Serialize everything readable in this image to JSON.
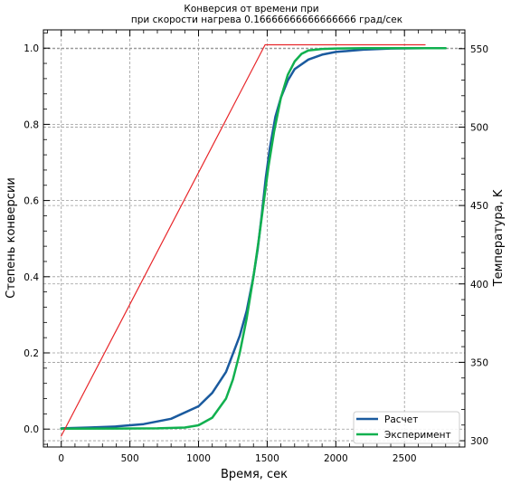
{
  "chart_data": {
    "type": "line",
    "title_line1": "Конверсия от времени при",
    "title_line2": "при скорости нагрева 0.16666666666666666 град/сек",
    "xlabel": "Время, сек",
    "ylabel": "Степень конверсии",
    "ylabel_right": "Температура, K",
    "xlim": [
      -130,
      2940
    ],
    "ylim": [
      -0.047,
      1.048
    ],
    "ylim_right": [
      296.0,
      562.0
    ],
    "x_ticks": [
      0,
      500,
      1000,
      1500,
      2000,
      2500
    ],
    "x_tick_labels": [
      "0",
      "500",
      "1000",
      "1500",
      "2000",
      "2500"
    ],
    "y_ticks": [
      0.0,
      0.2,
      0.4,
      0.6,
      0.8,
      1.0
    ],
    "y_tick_labels": [
      "0.0",
      "0.2",
      "0.4",
      "0.6",
      "0.8",
      "1.0"
    ],
    "y_right_ticks": [
      300,
      350,
      400,
      450,
      500,
      550
    ],
    "y_right_tick_labels": [
      "300",
      "350",
      "400",
      "450",
      "500",
      "550"
    ],
    "grid": true,
    "legend_position": "bottom-right",
    "series": [
      {
        "name": "Расчет",
        "axis": "left",
        "color": "#1a5a9e",
        "x": [
          0,
          200,
          400,
          600,
          800,
          1000,
          1100,
          1200,
          1300,
          1350,
          1400,
          1430,
          1460,
          1490,
          1520,
          1560,
          1600,
          1650,
          1700,
          1800,
          1900,
          2000,
          2200,
          2400,
          2650
        ],
        "y": [
          0.002,
          0.004,
          0.007,
          0.013,
          0.027,
          0.06,
          0.095,
          0.15,
          0.245,
          0.31,
          0.4,
          0.47,
          0.56,
          0.66,
          0.74,
          0.82,
          0.87,
          0.915,
          0.945,
          0.97,
          0.983,
          0.99,
          0.996,
          0.999,
          1.0
        ]
      },
      {
        "name": "Эксперимент",
        "axis": "left",
        "color": "#11b04f",
        "x": [
          0,
          400,
          700,
          900,
          1000,
          1100,
          1200,
          1250,
          1300,
          1350,
          1400,
          1440,
          1480,
          1510,
          1550,
          1600,
          1650,
          1700,
          1750,
          1800,
          1900,
          2000,
          2200,
          2500,
          2800
        ],
        "y": [
          0.001,
          0.0015,
          0.002,
          0.004,
          0.01,
          0.03,
          0.08,
          0.13,
          0.2,
          0.29,
          0.4,
          0.5,
          0.61,
          0.69,
          0.78,
          0.87,
          0.93,
          0.965,
          0.985,
          0.994,
          0.998,
          0.999,
          1.0,
          1.0,
          1.0
        ]
      },
      {
        "name": "Температура",
        "axis": "right",
        "color": "#e8262a",
        "x": [
          0,
          1485,
          2650
        ],
        "y": [
          303.0,
          552.5,
          552.5
        ]
      }
    ]
  }
}
